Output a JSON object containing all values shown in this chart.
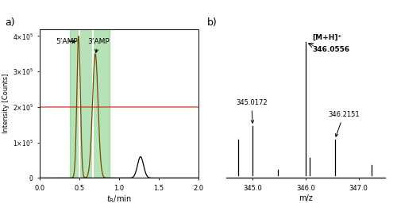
{
  "panel_a": {
    "xlim": [
      0.0,
      2.0
    ],
    "ylim": [
      0,
      420000
    ],
    "yticks": [
      0,
      100000,
      200000,
      300000,
      400000
    ],
    "xticks": [
      0.0,
      0.5,
      1.0,
      1.5,
      2.0
    ],
    "xlabel": "t",
    "ylabel": "Intensity [Counts]",
    "green_region": [
      0.38,
      0.88
    ],
    "white_lines": [
      0.5,
      0.67
    ],
    "label_5amp": "5’AMP",
    "label_3amp": "3’AMP",
    "peak1_mu": 0.49,
    "peak1_sigma": 0.022,
    "peak1_amp": 400000,
    "peak2_mu": 0.7,
    "peak2_sigma": 0.035,
    "peak2_amp": 350000,
    "black_peak_mu": 1.27,
    "black_peak_sigma": 0.038,
    "black_peak_amp": 60000,
    "red_baseline": 200000,
    "dark_color": "#6B5000",
    "red_color": "#CC2200",
    "black_color": "#000000"
  },
  "panel_b": {
    "xlim": [
      344.5,
      347.5
    ],
    "ylim": [
      -0.02,
      1.1
    ],
    "xlabel": "m/z",
    "peaks": [
      {
        "x": 344.73,
        "height": 0.27
      },
      {
        "x": 345.0,
        "height": 0.37
      },
      {
        "x": 345.47,
        "height": 0.04
      },
      {
        "x": 346.0,
        "height": 1.0
      },
      {
        "x": 346.07,
        "height": 0.13
      },
      {
        "x": 346.55,
        "height": 0.27
      },
      {
        "x": 347.25,
        "height": 0.08
      }
    ],
    "label_345": "345.0172",
    "label_346_top": "[M+H]⁺",
    "label_346_mz": "346.0556",
    "label_346b": "346.2151",
    "xticks": [
      345.0,
      346.0,
      347.0
    ],
    "xtick_labels": [
      "345.0",
      "346.0",
      "347.0"
    ]
  }
}
